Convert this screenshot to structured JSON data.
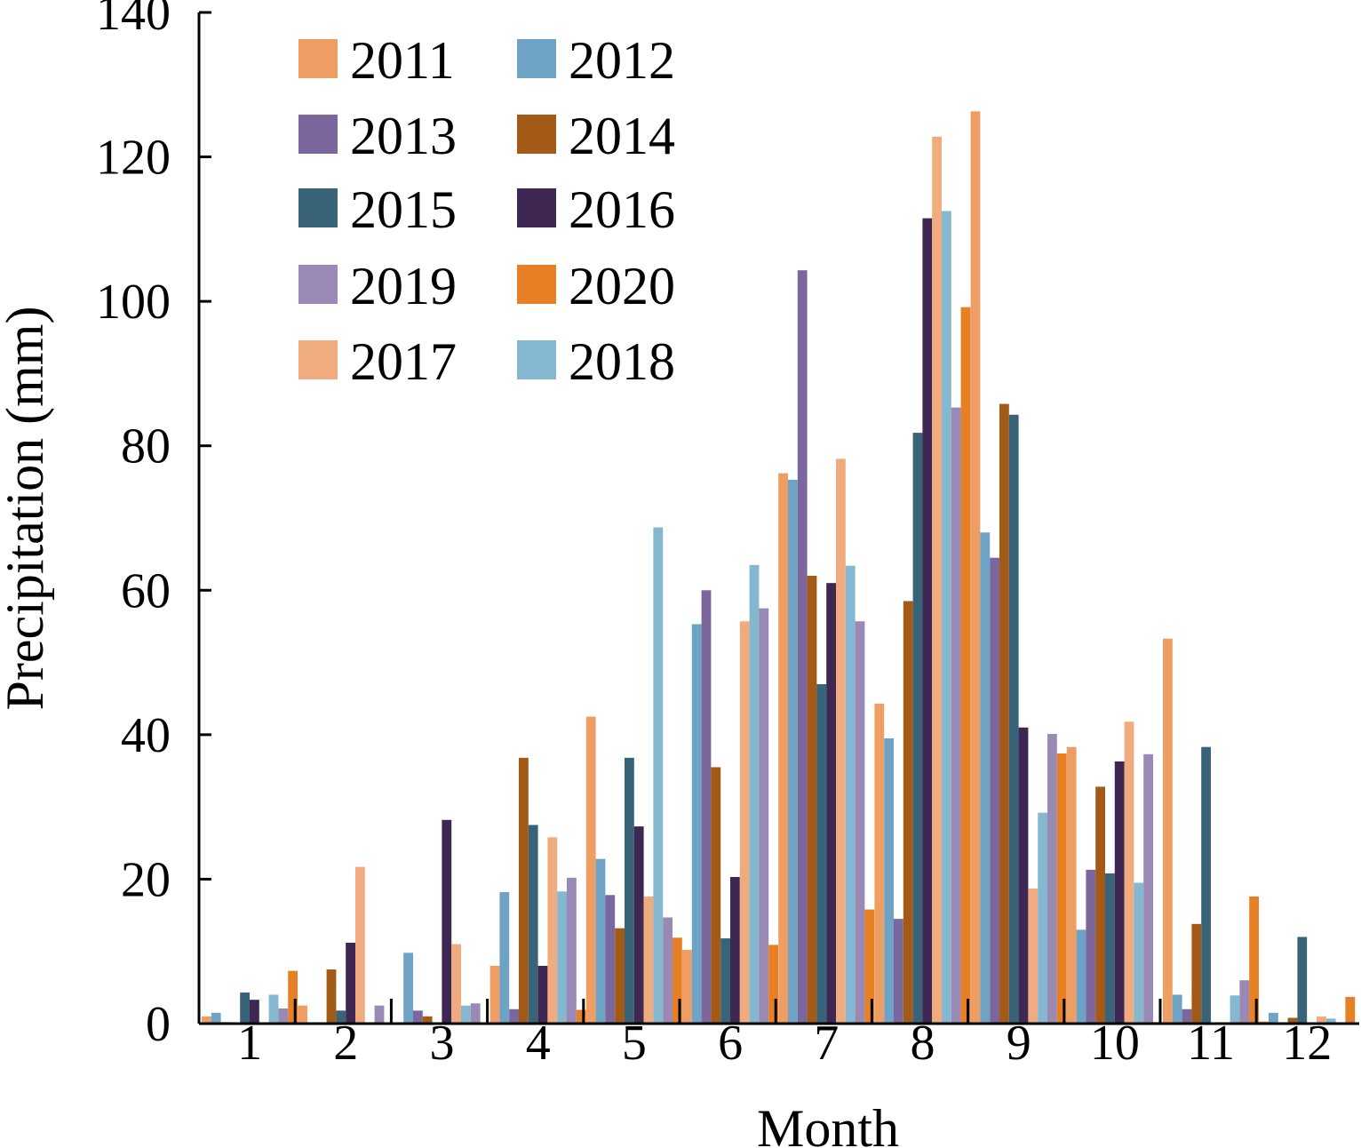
{
  "chart_data": {
    "type": "bar",
    "xlabel": "Month",
    "ylabel": "Precipitation (mm)",
    "ylim": [
      0,
      140
    ],
    "yticks": [
      0,
      20,
      40,
      60,
      80,
      100,
      120,
      140
    ],
    "categories": [
      "1",
      "2",
      "3",
      "4",
      "5",
      "6",
      "7",
      "8",
      "9",
      "10",
      "11",
      "12"
    ],
    "grid": false,
    "legend_position": "top-left",
    "series": [
      {
        "name": "2011",
        "color": "#EE9E63",
        "values": [
          1.0,
          2.5,
          0,
          8.0,
          42.5,
          10.2,
          76.2,
          44.3,
          126.3,
          38.3,
          53.3,
          0.3
        ]
      },
      {
        "name": "2012",
        "color": "#6FA3C6",
        "values": [
          1.5,
          0,
          9.8,
          18.2,
          22.8,
          55.3,
          75.3,
          39.5,
          68.0,
          13.0,
          4.0,
          1.5
        ]
      },
      {
        "name": "2013",
        "color": "#7C669E",
        "values": [
          0.2,
          0,
          1.8,
          2.0,
          17.8,
          60.0,
          104.3,
          14.5,
          64.5,
          21.3,
          2.0,
          0
        ]
      },
      {
        "name": "2014",
        "color": "#A25A16",
        "values": [
          0,
          7.5,
          1.0,
          36.8,
          13.2,
          35.5,
          62.0,
          58.5,
          85.8,
          32.8,
          13.8,
          0.8
        ]
      },
      {
        "name": "2015",
        "color": "#396378",
        "values": [
          4.3,
          1.8,
          0,
          27.5,
          36.8,
          11.8,
          47.0,
          81.8,
          84.3,
          20.8,
          38.3,
          12.0
        ]
      },
      {
        "name": "2016",
        "color": "#3E2753",
        "values": [
          3.3,
          11.2,
          28.2,
          8.0,
          27.3,
          20.3,
          61.0,
          111.5,
          41.0,
          36.3,
          0,
          0
        ]
      },
      {
        "name": "2017",
        "color": "#F0AC7E",
        "values": [
          0,
          21.7,
          11.0,
          25.8,
          17.6,
          55.7,
          78.2,
          122.8,
          18.7,
          41.8,
          0,
          1.0
        ]
      },
      {
        "name": "2018",
        "color": "#86B7D0",
        "values": [
          4.0,
          0,
          2.5,
          18.3,
          68.7,
          63.5,
          63.4,
          112.5,
          29.2,
          19.5,
          3.9,
          0.7
        ]
      },
      {
        "name": "2019",
        "color": "#9B89B5",
        "values": [
          2.1,
          2.5,
          2.8,
          20.2,
          14.7,
          57.5,
          55.7,
          85.3,
          40.1,
          37.3,
          6.0,
          0
        ]
      },
      {
        "name": "2020",
        "color": "#E77F25",
        "values": [
          7.3,
          0,
          0,
          1.9,
          11.9,
          10.9,
          15.8,
          99.2,
          37.4,
          0.2,
          17.6,
          3.7
        ]
      }
    ]
  }
}
